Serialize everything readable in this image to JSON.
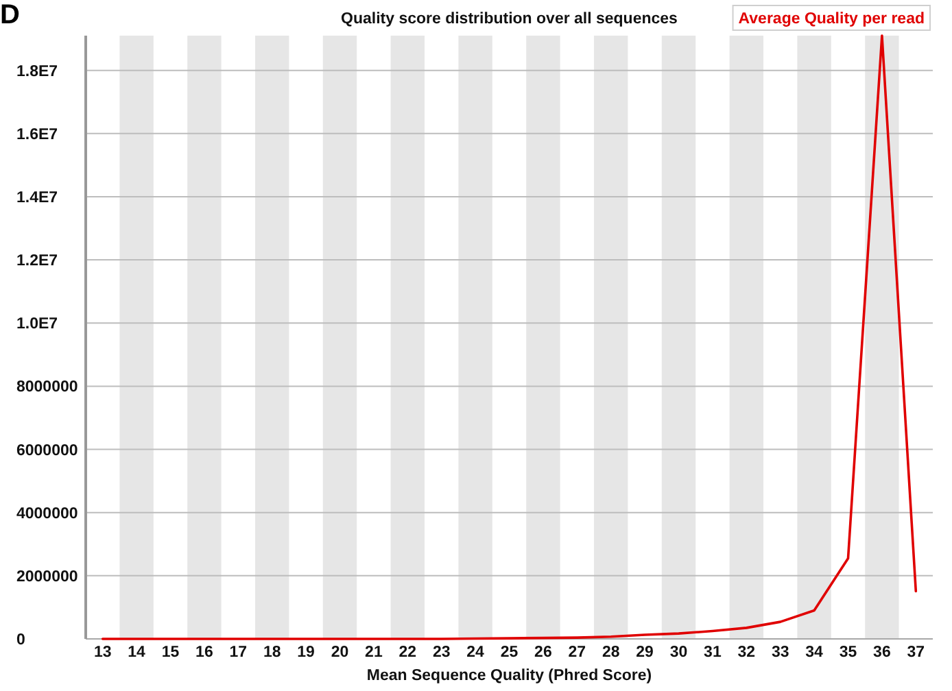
{
  "chart_data": {
    "type": "line",
    "title": "Quality score distribution over all sequences",
    "xlabel": "Mean Sequence Quality (Phred Score)",
    "annotations": [
      "D"
    ],
    "categories": [
      "13",
      "14",
      "15",
      "16",
      "17",
      "18",
      "19",
      "20",
      "21",
      "22",
      "23",
      "24",
      "25",
      "26",
      "27",
      "28",
      "29",
      "30",
      "31",
      "32",
      "33",
      "34",
      "35",
      "36",
      "37"
    ],
    "series": [
      {
        "name": "Average Quality per read",
        "color": "#e00000",
        "values": [
          0,
          0,
          0,
          0,
          0,
          0,
          0,
          0,
          0,
          0,
          0,
          10000,
          20000,
          30000,
          40000,
          70000,
          130000,
          170000,
          250000,
          350000,
          540000,
          900000,
          2550000,
          19100000,
          1510000
        ]
      }
    ],
    "ylim": [
      0,
      19100000
    ],
    "yticks": [
      0,
      2000000,
      4000000,
      6000000,
      8000000,
      {
        "value": 10000000,
        "label": "1.0E7"
      },
      {
        "value": 12000000,
        "label": "1.2E7"
      },
      {
        "value": 14000000,
        "label": "1.4E7"
      },
      {
        "value": 16000000,
        "label": "1.6E7"
      },
      {
        "value": 18000000,
        "label": "1.8E7"
      }
    ],
    "grid": "y",
    "legend": "top right",
    "bands": [
      {
        "axis": "x",
        "from": "14",
        "to": "14",
        "color": "#e6e6e6"
      },
      {
        "axis": "x",
        "from": "16",
        "to": "16",
        "color": "#e6e6e6"
      },
      {
        "axis": "x",
        "from": "18",
        "to": "18",
        "color": "#e6e6e6"
      },
      {
        "axis": "x",
        "from": "20",
        "to": "20",
        "color": "#e6e6e6"
      },
      {
        "axis": "x",
        "from": "22",
        "to": "22",
        "color": "#e6e6e6"
      },
      {
        "axis": "x",
        "from": "24",
        "to": "24",
        "color": "#e6e6e6"
      },
      {
        "axis": "x",
        "from": "26",
        "to": "26",
        "color": "#e6e6e6"
      },
      {
        "axis": "x",
        "from": "28",
        "to": "28",
        "color": "#e6e6e6"
      },
      {
        "axis": "x",
        "from": "30",
        "to": "30",
        "color": "#e6e6e6"
      },
      {
        "axis": "x",
        "from": "32",
        "to": "32",
        "color": "#e6e6e6"
      },
      {
        "axis": "x",
        "from": "34",
        "to": "34",
        "color": "#e6e6e6"
      },
      {
        "axis": "x",
        "from": "36",
        "to": "36",
        "color": "#e6e6e6"
      }
    ]
  }
}
